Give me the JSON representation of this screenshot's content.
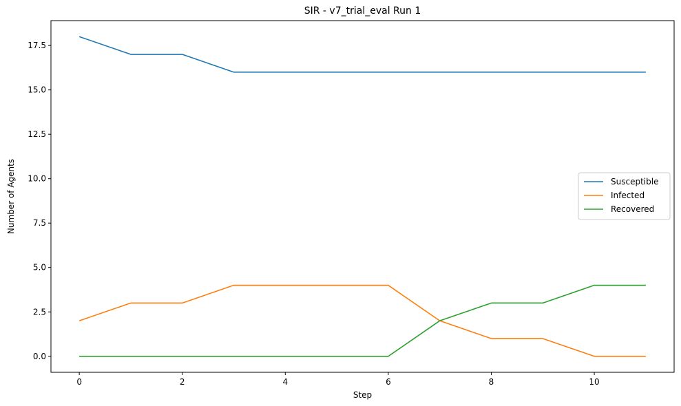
{
  "chart_data": {
    "type": "line",
    "title": "SIR - v7_trial_eval Run 1",
    "xlabel": "Step",
    "ylabel": "Number of Agents",
    "x": [
      0,
      1,
      2,
      3,
      4,
      5,
      6,
      7,
      8,
      9,
      10,
      11
    ],
    "xlim": [
      -0.55,
      11.55
    ],
    "ylim": [
      -0.9,
      18.9
    ],
    "xticks": [
      0,
      2,
      4,
      6,
      8,
      10
    ],
    "xtick_labels": [
      "0",
      "2",
      "4",
      "6",
      "8",
      "10"
    ],
    "yticks": [
      0,
      2.5,
      5,
      7.5,
      10,
      12.5,
      15,
      17.5
    ],
    "ytick_labels": [
      "0.0",
      "2.5",
      "5.0",
      "7.5",
      "10.0",
      "12.5",
      "15.0",
      "17.5"
    ],
    "grid": false,
    "legend_position": "center-right",
    "series": [
      {
        "name": "Susceptible",
        "color": "#1f77b4",
        "values": [
          18,
          17,
          17,
          16,
          16,
          16,
          16,
          16,
          16,
          16,
          16,
          16
        ]
      },
      {
        "name": "Infected",
        "color": "#ff7f0e",
        "values": [
          2,
          3,
          3,
          4,
          4,
          4,
          4,
          2,
          1,
          1,
          0,
          0
        ]
      },
      {
        "name": "Recovered",
        "color": "#2ca02c",
        "values": [
          0,
          0,
          0,
          0,
          0,
          0,
          0,
          2,
          3,
          3,
          4,
          4
        ]
      }
    ]
  }
}
